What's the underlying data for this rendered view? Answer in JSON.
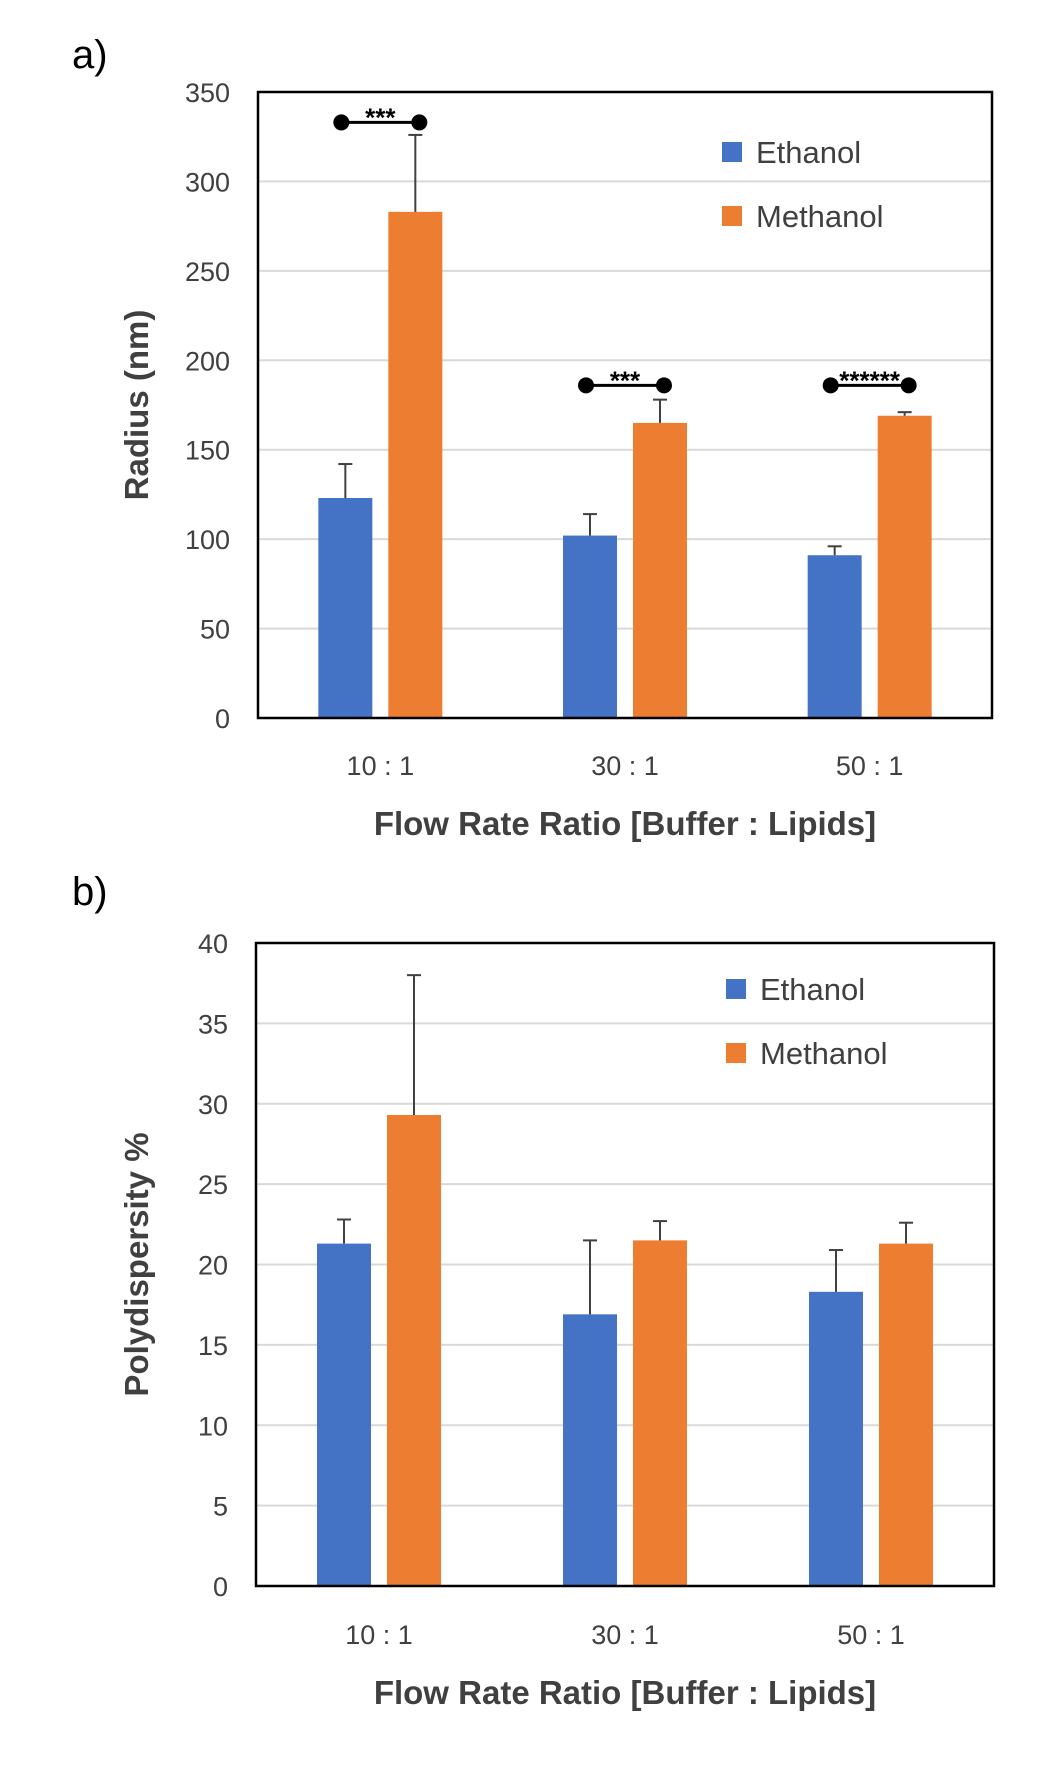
{
  "colors": {
    "ethanol": "#4472C4",
    "methanol": "#ED7D31",
    "grid": "#D9D9D9",
    "frame": "#000000",
    "text": "#404040",
    "errorbar": "#404040"
  },
  "chart_data": [
    {
      "panel": "a)",
      "type": "bar",
      "categories": [
        "10 : 1",
        "30 : 1",
        "50 : 1"
      ],
      "series": [
        {
          "name": "Ethanol",
          "values": [
            123,
            102,
            91
          ],
          "errors": [
            19,
            12,
            5
          ]
        },
        {
          "name": "Methanol",
          "values": [
            283,
            165,
            169
          ],
          "errors": [
            43,
            13,
            2
          ]
        }
      ],
      "xlabel": "Flow Rate Ratio [Buffer : Lipids]",
      "ylabel": "Radius (nm)",
      "ylim": [
        0,
        350
      ],
      "yticks": [
        0,
        50,
        100,
        150,
        200,
        250,
        300,
        350
      ],
      "grid": true,
      "legend": "top-right",
      "significance": [
        {
          "category": "10 : 1",
          "label": "***",
          "y": 333
        },
        {
          "category": "30 : 1",
          "label": "***",
          "y": 186
        },
        {
          "category": "50 : 1",
          "label": "******",
          "y": 186
        }
      ]
    },
    {
      "panel": "b)",
      "type": "bar",
      "categories": [
        "10 : 1",
        "30 : 1",
        "50 : 1"
      ],
      "series": [
        {
          "name": "Ethanol",
          "values": [
            21.3,
            16.9,
            18.3
          ],
          "errors": [
            1.5,
            4.6,
            2.6
          ]
        },
        {
          "name": "Methanol",
          "values": [
            29.3,
            21.5,
            21.3
          ],
          "errors": [
            8.7,
            1.2,
            1.3
          ]
        }
      ],
      "xlabel": "Flow Rate Ratio [Buffer : Lipids]",
      "ylabel": "Polydispersity %",
      "ylim": [
        0,
        40
      ],
      "yticks": [
        0,
        5,
        10,
        15,
        20,
        25,
        30,
        35,
        40
      ],
      "grid": true,
      "legend": "top-right"
    }
  ]
}
